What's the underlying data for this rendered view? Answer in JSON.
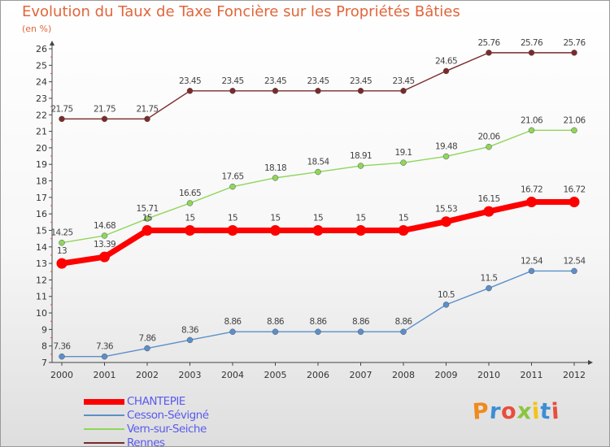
{
  "header": {
    "title": "Evolution du Taux de Taxe Foncière sur les Propriétés Bâties",
    "unit": "(en %)"
  },
  "chart_data": {
    "type": "line",
    "title": "Evolution du Taux de Taxe Foncière sur les Propriétés Bâties",
    "ylabel": "(en %)",
    "xlabel": "",
    "x": [
      "2000",
      "2001",
      "2002",
      "2003",
      "2004",
      "2005",
      "2006",
      "2007",
      "2008",
      "2009",
      "2010",
      "2011",
      "2012"
    ],
    "ylim": [
      7,
      26
    ],
    "yticks": [
      7,
      8,
      9,
      10,
      11,
      12,
      13,
      14,
      15,
      16,
      17,
      18,
      19,
      20,
      21,
      22,
      23,
      24,
      25,
      26
    ],
    "grid": false,
    "legend_position": "bottom-left",
    "series": [
      {
        "name": "CHANTEPIE",
        "color": "#ff0000",
        "line_width": 7,
        "marker_radius": 6.5,
        "values": [
          13,
          13.39,
          15,
          15,
          15,
          15,
          15,
          15,
          15,
          15.53,
          16.15,
          16.72,
          16.72
        ],
        "labels": [
          "13",
          "13.39",
          "15",
          "15",
          "15",
          "15",
          "15",
          "15",
          "15",
          "15.53",
          "16.15",
          "16.72",
          "16.72"
        ]
      },
      {
        "name": "Cesson-Sévigné",
        "color": "#5b8fc9",
        "line_width": 1.4,
        "marker_radius": 3.5,
        "values": [
          7.36,
          7.36,
          7.86,
          8.36,
          8.86,
          8.86,
          8.86,
          8.86,
          8.86,
          10.5,
          11.5,
          12.54,
          12.54
        ],
        "labels": [
          "7.36",
          "7.36",
          "7.86",
          "8.36",
          "8.86",
          "8.86",
          "8.86",
          "8.86",
          "8.86",
          "10.5",
          "11.5",
          "12.54",
          "12.54"
        ]
      },
      {
        "name": "Vern-sur-Seiche",
        "color": "#8fd65a",
        "line_width": 1.4,
        "marker_radius": 3.5,
        "values": [
          14.25,
          14.68,
          15.71,
          16.65,
          17.65,
          18.18,
          18.54,
          18.91,
          19.1,
          19.48,
          20.06,
          21.06,
          21.06
        ],
        "labels": [
          "14.25",
          "14.68",
          "15.71",
          "16.65",
          "17.65",
          "18.18",
          "18.54",
          "18.91",
          "19.1",
          "19.48",
          "20.06",
          "21.06",
          "21.06"
        ]
      },
      {
        "name": "Rennes",
        "color": "#7a2a2a",
        "line_width": 1.4,
        "marker_radius": 3.5,
        "values": [
          21.75,
          21.75,
          21.75,
          23.45,
          23.45,
          23.45,
          23.45,
          23.45,
          23.45,
          24.65,
          25.76,
          25.76,
          25.76
        ],
        "labels": [
          "21.75",
          "21.75",
          "21.75",
          "23.45",
          "23.45",
          "23.45",
          "23.45",
          "23.45",
          "23.45",
          "24.65",
          "25.76",
          "25.76",
          "25.76"
        ]
      }
    ]
  },
  "legend": {
    "items": [
      {
        "label": "CHANTEPIE",
        "color": "#ff0000",
        "thickness": 7
      },
      {
        "label": "Cesson-Sévigné",
        "color": "#5b8fc9",
        "thickness": 2
      },
      {
        "label": "Vern-sur-Seiche",
        "color": "#8fd65a",
        "thickness": 2
      },
      {
        "label": "Rennes",
        "color": "#7a2a2a",
        "thickness": 2
      }
    ]
  },
  "logo": {
    "text": "Proxiti",
    "colors": [
      "#f08a1c",
      "#3b8ed4",
      "#e94d3c",
      "#8bc53f",
      "#f2c318",
      "#3b8ed4",
      "#e94d3c"
    ]
  }
}
